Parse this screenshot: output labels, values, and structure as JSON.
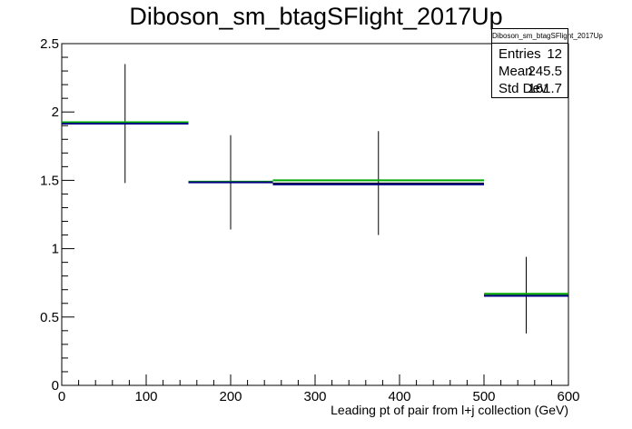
{
  "chart_data": {
    "type": "histogram",
    "title": "Diboson_sm_btagSFlight_2017Up",
    "xlabel": "Leading pt of pair from l+j collection (GeV)",
    "ylabel": "",
    "xlim": [
      0,
      600
    ],
    "ylim": [
      0,
      2.5
    ],
    "x_ticks": [
      0,
      100,
      200,
      300,
      400,
      500,
      600
    ],
    "x_tick_labels": [
      "0",
      "100",
      "200",
      "300",
      "400",
      "500",
      "600"
    ],
    "y_ticks": [
      0,
      0.5,
      1,
      1.5,
      2,
      2.5
    ],
    "y_tick_labels": [
      "0",
      "0.5",
      "1",
      "1.5",
      "2",
      "2.5"
    ],
    "grid": false,
    "bins": [
      {
        "x_low": 0,
        "x_high": 150,
        "value": 1.92,
        "err_low": 1.48,
        "err_high": 2.35
      },
      {
        "x_low": 150,
        "x_high": 250,
        "value": 1.49,
        "err_low": 1.14,
        "err_high": 1.83
      },
      {
        "x_low": 250,
        "x_high": 500,
        "value": 1.48,
        "err_low": 1.1,
        "err_high": 1.86
      },
      {
        "x_low": 500,
        "x_high": 600,
        "value": 0.66,
        "err_low": 0.38,
        "err_high": 0.94
      }
    ],
    "overlays": [
      {
        "color": "#00aa00",
        "values": [
          1.925,
          1.49,
          1.5,
          0.67
        ]
      },
      {
        "color": "#000080",
        "values": [
          1.915,
          1.485,
          1.47,
          0.655
        ]
      }
    ],
    "stats": {
      "title": "Diboson_sm_btagSFlight_2017Up",
      "rows": [
        {
          "label": "Entries",
          "value": "12"
        },
        {
          "label": "Mean",
          "value": "245.5"
        },
        {
          "label": "Std Dev",
          "value": "161.7"
        }
      ]
    }
  }
}
